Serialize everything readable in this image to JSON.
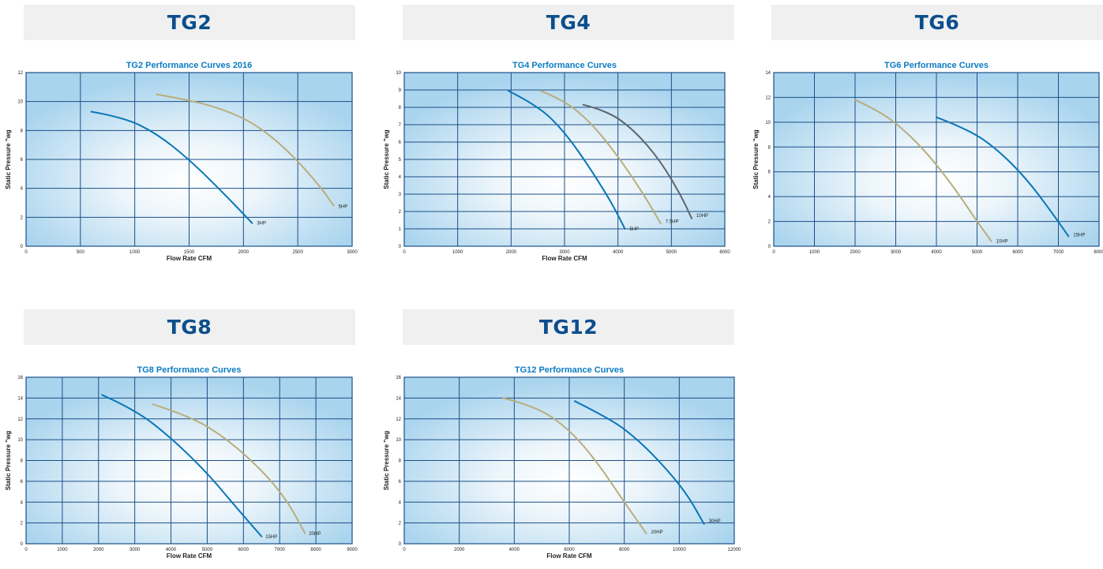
{
  "colors": {
    "banner_text": "#0b4e8c",
    "banner_bg": "#f0f0f0",
    "title": "#0a7cc2",
    "plot_bg": "#a9d4ee",
    "grid": "#1b4f86",
    "curve_blue": "#0a76b8",
    "curve_tan": "#b9ad7c",
    "curve_gray": "#5c6570"
  },
  "panels": [
    {
      "banner": "TG2"
    },
    {
      "banner": "TG4"
    },
    {
      "banner": "TG6"
    },
    {
      "banner": "TG8"
    },
    {
      "banner": "TG12"
    }
  ],
  "chart_data": [
    {
      "type": "line",
      "title": "TG2 Performance Curves 2016",
      "xlabel": "Flow Rate CFM",
      "ylabel": "Static Pressure \"wg",
      "xlim": [
        0,
        3000
      ],
      "ylim": [
        0,
        12
      ],
      "xticks": [
        0,
        500,
        1000,
        1500,
        2000,
        2500,
        3000
      ],
      "yticks": [
        0,
        2,
        4,
        6,
        8,
        10,
        12
      ],
      "series": [
        {
          "name": "3HP",
          "color": "blue",
          "x": [
            600,
            900,
            1200,
            1500,
            1800,
            2080
          ],
          "y": [
            9.3,
            8.9,
            7.8,
            6.0,
            3.8,
            1.6
          ]
        },
        {
          "name": "5HP",
          "color": "tan",
          "x": [
            1200,
            1500,
            1800,
            2100,
            2400,
            2700,
            2830
          ],
          "y": [
            10.5,
            10.1,
            9.5,
            8.5,
            6.7,
            4.2,
            2.8
          ]
        }
      ]
    },
    {
      "type": "line",
      "title": "TG4 Performance Curves",
      "xlabel": "Flow Rate CFM",
      "ylabel": "Static Pressure \"wg",
      "xlim": [
        0,
        6000
      ],
      "ylim": [
        0,
        10
      ],
      "xticks": [
        0,
        1000,
        2000,
        3000,
        4000,
        5000,
        6000
      ],
      "yticks": [
        0,
        1,
        2,
        3,
        4,
        5,
        6,
        7,
        8,
        9,
        10
      ],
      "series": [
        {
          "name": "5HP",
          "color": "blue",
          "x": [
            1950,
            2500,
            3000,
            3500,
            3900,
            4130
          ],
          "y": [
            8.95,
            8.1,
            6.6,
            4.4,
            2.4,
            1.0
          ]
        },
        {
          "name": "7.5HP",
          "color": "tan",
          "x": [
            2550,
            3000,
            3500,
            4000,
            4500,
            4800
          ],
          "y": [
            8.95,
            8.4,
            7.1,
            5.2,
            2.9,
            1.3
          ]
        },
        {
          "name": "10HP",
          "color": "gray",
          "x": [
            3350,
            3800,
            4300,
            4800,
            5200,
            5380
          ],
          "y": [
            8.15,
            7.8,
            6.7,
            4.9,
            2.8,
            1.6
          ]
        }
      ]
    },
    {
      "type": "line",
      "title": "TG6 Performance Curves",
      "xlabel": "",
      "ylabel": "Static Pressure \"wg",
      "xlim": [
        0,
        8000
      ],
      "ylim": [
        0,
        14
      ],
      "xticks": [
        0,
        1000,
        2000,
        3000,
        4000,
        5000,
        6000,
        7000,
        8000
      ],
      "yticks": [
        0,
        2,
        4,
        6,
        8,
        10,
        12,
        14
      ],
      "series": [
        {
          "name": "10HP",
          "color": "tan",
          "x": [
            2000,
            2600,
            3200,
            3800,
            4400,
            5000,
            5350
          ],
          "y": [
            11.8,
            10.9,
            9.4,
            7.4,
            4.9,
            2.0,
            0.4
          ]
        },
        {
          "name": "15HP",
          "color": "blue",
          "x": [
            4000,
            4800,
            5500,
            6200,
            6800,
            7250
          ],
          "y": [
            10.4,
            9.4,
            7.8,
            5.5,
            2.9,
            0.8
          ]
        }
      ]
    },
    {
      "type": "line",
      "title": "TG8 Performance Curves",
      "xlabel": "Flow Rate CFM",
      "ylabel": "Static Pressure \"wg",
      "xlim": [
        0,
        9000
      ],
      "ylim": [
        0,
        16
      ],
      "xticks": [
        0,
        1000,
        2000,
        3000,
        4000,
        5000,
        6000,
        7000,
        8000,
        9000
      ],
      "yticks": [
        0,
        2,
        4,
        6,
        8,
        10,
        12,
        14,
        16
      ],
      "series": [
        {
          "name": "15HP",
          "color": "blue",
          "x": [
            2100,
            3000,
            4000,
            5000,
            5800,
            6500
          ],
          "y": [
            14.3,
            12.9,
            10.2,
            6.8,
            3.5,
            0.7
          ]
        },
        {
          "name": "20HP",
          "color": "tan",
          "x": [
            3500,
            4500,
            5500,
            6500,
            7200,
            7700
          ],
          "y": [
            13.4,
            12.3,
            10.2,
            7.1,
            4.2,
            1.0
          ]
        }
      ]
    },
    {
      "type": "line",
      "title": "TG12 Performance Curves",
      "xlabel": "Flow Rate CFM",
      "ylabel": "Static Pressure \"wg",
      "xlim": [
        0,
        12000
      ],
      "ylim": [
        0,
        16
      ],
      "xticks": [
        0,
        2000,
        4000,
        6000,
        8000,
        10000,
        12000
      ],
      "yticks": [
        0,
        2,
        4,
        6,
        8,
        10,
        12,
        14,
        16
      ],
      "series": [
        {
          "name": "20HP",
          "color": "tan",
          "x": [
            3600,
            4800,
            6000,
            7000,
            8000,
            8800
          ],
          "y": [
            14.0,
            13.2,
            11.0,
            7.9,
            4.0,
            1.0
          ]
        },
        {
          "name": "30HP",
          "color": "blue",
          "x": [
            6200,
            7500,
            8500,
            9500,
            10300,
            10900
          ],
          "y": [
            13.7,
            12.0,
            10.0,
            7.3,
            4.7,
            1.9
          ]
        }
      ]
    }
  ]
}
